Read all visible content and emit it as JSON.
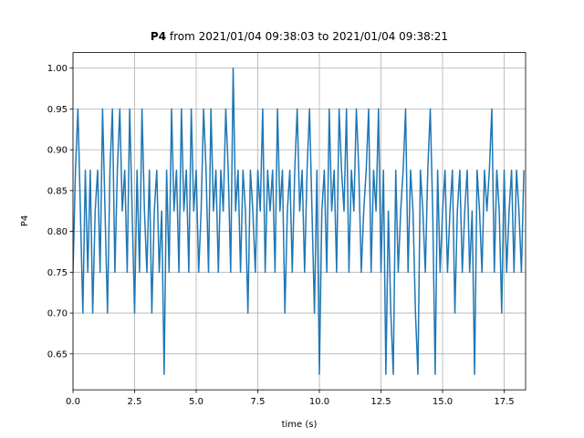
{
  "chart_data": {
    "type": "line",
    "title": {
      "bold": "P4",
      "rest": "from 2021/01/04 09:38:03 to 2021/01/04 09:38:21"
    },
    "xlabel": "time (s)",
    "ylabel": "P4",
    "xlim": [
      0,
      18.37
    ],
    "ylim": [
      0.606,
      1.019
    ],
    "xticks": [
      {
        "value": 0,
        "label": "0.0"
      },
      2.5,
      {
        "value": 5,
        "label": "5.0"
      },
      7.5,
      {
        "value": 10,
        "label": "10.0"
      },
      12.5,
      {
        "value": 15,
        "label": "15.0"
      },
      17.5
    ],
    "yticks": [
      0.65,
      {
        "value": 0.7,
        "label": "0.70"
      },
      0.75,
      {
        "value": 0.8,
        "label": "0.80"
      },
      0.85,
      {
        "value": 0.9,
        "label": "0.90"
      },
      0.95,
      {
        "value": 1,
        "label": "1.00"
      }
    ],
    "grid": true,
    "series": [
      {
        "name": "P4",
        "color": "#1f77b4",
        "x": [
          0,
          0.1,
          0.2,
          0.3,
          0.4,
          0.5,
          0.6,
          0.7,
          0.8,
          0.9,
          1,
          1.1,
          1.2,
          1.3,
          1.4,
          1.5,
          1.6,
          1.7,
          1.8,
          1.9,
          2,
          2.1,
          2.2,
          2.3,
          2.4,
          2.5,
          2.6,
          2.7,
          2.8,
          2.9,
          3,
          3.1,
          3.2,
          3.3,
          3.4,
          3.5,
          3.6,
          3.7,
          3.8,
          3.9,
          4,
          4.1,
          4.2,
          4.3,
          4.4,
          4.5,
          4.6,
          4.7,
          4.8,
          4.9,
          5,
          5.1,
          5.2,
          5.3,
          5.4,
          5.5,
          5.6,
          5.7,
          5.8,
          5.9,
          6,
          6.1,
          6.2,
          6.3,
          6.4,
          6.5,
          6.6,
          6.7,
          6.8,
          6.9,
          7,
          7.1,
          7.2,
          7.3,
          7.4,
          7.5,
          7.6,
          7.7,
          7.8,
          7.9,
          8,
          8.1,
          8.2,
          8.3,
          8.4,
          8.5,
          8.6,
          8.7,
          8.8,
          8.9,
          9,
          9.1,
          9.2,
          9.3,
          9.4,
          9.5,
          9.6,
          9.7,
          9.8,
          9.9,
          10,
          10.1,
          10.2,
          10.3,
          10.4,
          10.5,
          10.6,
          10.7,
          10.8,
          10.9,
          11,
          11.1,
          11.2,
          11.3,
          11.4,
          11.5,
          11.6,
          11.7,
          11.8,
          11.9,
          12,
          12.1,
          12.2,
          12.3,
          12.4,
          12.5,
          12.6,
          12.7,
          12.8,
          12.9,
          13,
          13.1,
          13.2,
          13.3,
          13.4,
          13.5,
          13.6,
          13.7,
          13.8,
          13.9,
          14,
          14.1,
          14.2,
          14.3,
          14.4,
          14.5,
          14.6,
          14.7,
          14.8,
          14.9,
          15,
          15.1,
          15.2,
          15.3,
          15.4,
          15.5,
          15.6,
          15.7,
          15.8,
          15.9,
          16,
          16.1,
          16.2,
          16.3,
          16.4,
          16.5,
          16.6,
          16.7,
          16.8,
          16.9,
          17,
          17.1,
          17.2,
          17.3,
          17.4,
          17.5,
          17.6,
          17.7,
          17.8,
          17.9,
          18,
          18.1,
          18.2,
          18.3
        ],
        "values": [
          0.75,
          0.875,
          0.95,
          0.825,
          0.7,
          0.875,
          0.75,
          0.875,
          0.7,
          0.825,
          0.875,
          0.75,
          0.95,
          0.825,
          0.7,
          0.875,
          0.95,
          0.75,
          0.875,
          0.95,
          0.825,
          0.875,
          0.75,
          0.95,
          0.825,
          0.7,
          0.875,
          0.75,
          0.95,
          0.825,
          0.75,
          0.875,
          0.7,
          0.825,
          0.875,
          0.75,
          0.825,
          0.625,
          0.875,
          0.75,
          0.95,
          0.825,
          0.875,
          0.75,
          0.95,
          0.825,
          0.875,
          0.75,
          0.95,
          0.825,
          0.875,
          0.75,
          0.825,
          0.95,
          0.875,
          0.75,
          0.95,
          0.825,
          0.875,
          0.75,
          0.875,
          0.825,
          0.95,
          0.875,
          0.75,
          1.0,
          0.825,
          0.875,
          0.75,
          0.875,
          0.825,
          0.7,
          0.875,
          0.825,
          0.75,
          0.875,
          0.825,
          0.95,
          0.75,
          0.875,
          0.825,
          0.875,
          0.75,
          0.95,
          0.825,
          0.875,
          0.7,
          0.825,
          0.875,
          0.75,
          0.875,
          0.95,
          0.825,
          0.875,
          0.75,
          0.875,
          0.95,
          0.825,
          0.7,
          0.875,
          0.625,
          0.825,
          0.875,
          0.75,
          0.95,
          0.825,
          0.875,
          0.75,
          0.95,
          0.875,
          0.825,
          0.95,
          0.75,
          0.875,
          0.825,
          0.95,
          0.875,
          0.75,
          0.825,
          0.875,
          0.95,
          0.75,
          0.875,
          0.825,
          0.95,
          0.75,
          0.875,
          0.625,
          0.825,
          0.7,
          0.625,
          0.875,
          0.75,
          0.825,
          0.875,
          0.95,
          0.75,
          0.875,
          0.825,
          0.7,
          0.625,
          0.875,
          0.825,
          0.75,
          0.875,
          0.95,
          0.825,
          0.625,
          0.875,
          0.75,
          0.825,
          0.875,
          0.75,
          0.825,
          0.875,
          0.7,
          0.825,
          0.875,
          0.75,
          0.825,
          0.875,
          0.75,
          0.825,
          0.625,
          0.875,
          0.825,
          0.75,
          0.875,
          0.825,
          0.875,
          0.95,
          0.75,
          0.875,
          0.825,
          0.7,
          0.875,
          0.75,
          0.825,
          0.875,
          0.75,
          0.875,
          0.825,
          0.75,
          0.875
        ]
      }
    ]
  }
}
